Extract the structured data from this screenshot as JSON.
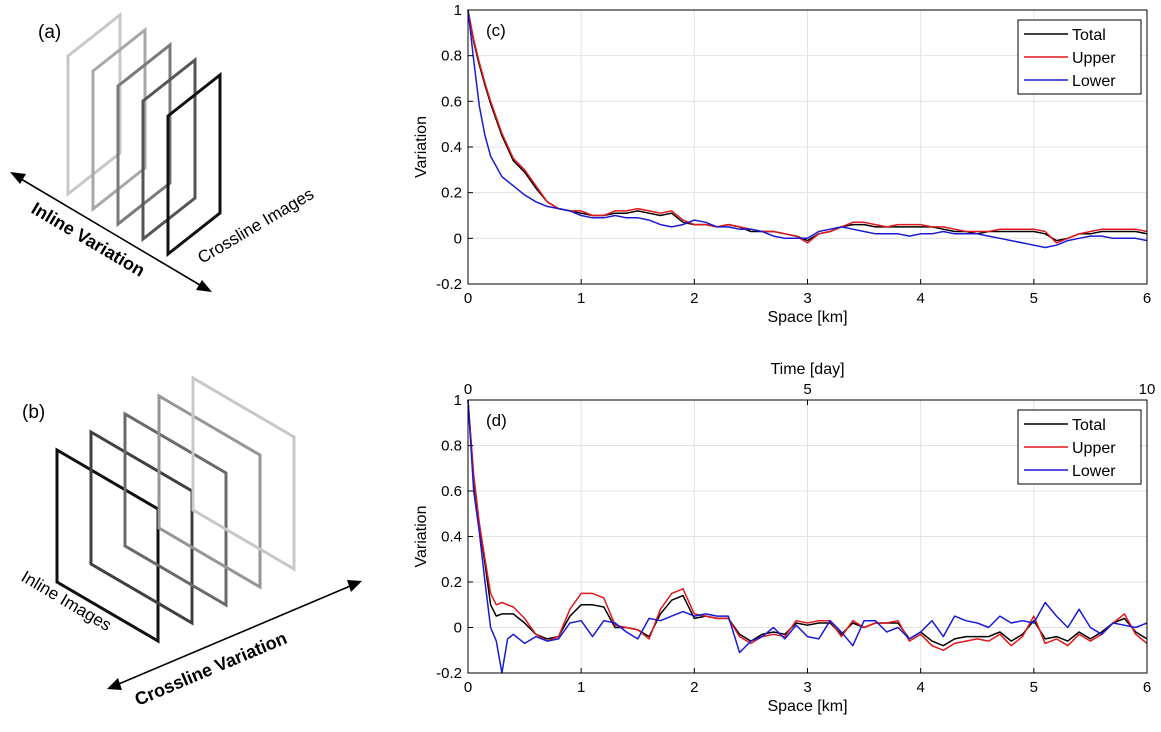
{
  "panels": {
    "a": {
      "label": "(a)",
      "arrow_label": "Inline Variation",
      "image_label": "Crossline Images",
      "frame_colors": [
        "#c8c8c8",
        "#a8a8a8",
        "#7a7a7a",
        "#555555",
        "#111111"
      ]
    },
    "b": {
      "label": "(b)",
      "arrow_label": "Crossline Variation",
      "image_label": "Inline Images",
      "frame_colors": [
        "#111111",
        "#404040",
        "#6a6a6a",
        "#969696",
        "#c8c8c8"
      ]
    }
  },
  "chart_data": [
    {
      "id": "c",
      "type": "line",
      "panel_label": "(c)",
      "xlabel": "Space [km]",
      "ylabel": "Variation",
      "xlim": [
        0,
        6
      ],
      "ylim": [
        -0.2,
        1
      ],
      "xticks": [
        0,
        1,
        2,
        3,
        4,
        5,
        6
      ],
      "yticks": [
        -0.2,
        0,
        0.2,
        0.4,
        0.6,
        0.8,
        1
      ],
      "grid": true,
      "legend": "top-right",
      "series": [
        {
          "name": "Total",
          "color": "#000000",
          "x": [
            0,
            0.05,
            0.1,
            0.15,
            0.2,
            0.3,
            0.4,
            0.5,
            0.6,
            0.7,
            0.8,
            0.9,
            1.0,
            1.1,
            1.2,
            1.3,
            1.4,
            1.5,
            1.6,
            1.7,
            1.8,
            1.9,
            2.0,
            2.1,
            2.2,
            2.3,
            2.4,
            2.5,
            2.6,
            2.7,
            2.8,
            2.9,
            3.0,
            3.1,
            3.2,
            3.3,
            3.4,
            3.5,
            3.6,
            3.7,
            3.8,
            3.9,
            4.0,
            4.1,
            4.2,
            4.3,
            4.4,
            4.5,
            4.6,
            4.7,
            4.8,
            4.9,
            5.0,
            5.1,
            5.2,
            5.3,
            5.4,
            5.5,
            5.6,
            5.7,
            5.8,
            5.9,
            6.0
          ],
          "y": [
            1.0,
            0.86,
            0.76,
            0.67,
            0.59,
            0.45,
            0.34,
            0.29,
            0.22,
            0.16,
            0.13,
            0.12,
            0.11,
            0.1,
            0.1,
            0.11,
            0.11,
            0.12,
            0.11,
            0.1,
            0.11,
            0.07,
            0.06,
            0.06,
            0.05,
            0.06,
            0.05,
            0.03,
            0.03,
            0.03,
            0.02,
            0.01,
            -0.01,
            0.02,
            0.03,
            0.05,
            0.06,
            0.06,
            0.05,
            0.05,
            0.05,
            0.05,
            0.05,
            0.05,
            0.04,
            0.03,
            0.03,
            0.02,
            0.03,
            0.03,
            0.03,
            0.03,
            0.03,
            0.02,
            -0.01,
            0.0,
            0.02,
            0.02,
            0.03,
            0.03,
            0.03,
            0.03,
            0.02
          ]
        },
        {
          "name": "Upper",
          "color": "#e0191c",
          "x": [
            0,
            0.05,
            0.1,
            0.15,
            0.2,
            0.3,
            0.4,
            0.5,
            0.6,
            0.7,
            0.8,
            0.9,
            1.0,
            1.1,
            1.2,
            1.3,
            1.4,
            1.5,
            1.6,
            1.7,
            1.8,
            1.9,
            2.0,
            2.1,
            2.2,
            2.3,
            2.4,
            2.5,
            2.6,
            2.7,
            2.8,
            2.9,
            3.0,
            3.1,
            3.2,
            3.3,
            3.4,
            3.5,
            3.6,
            3.7,
            3.8,
            3.9,
            4.0,
            4.1,
            4.2,
            4.3,
            4.4,
            4.5,
            4.6,
            4.7,
            4.8,
            4.9,
            5.0,
            5.1,
            5.2,
            5.3,
            5.4,
            5.5,
            5.6,
            5.7,
            5.8,
            5.9,
            6.0
          ],
          "y": [
            1.0,
            0.87,
            0.77,
            0.68,
            0.6,
            0.46,
            0.35,
            0.3,
            0.23,
            0.16,
            0.13,
            0.12,
            0.12,
            0.1,
            0.1,
            0.12,
            0.12,
            0.13,
            0.12,
            0.11,
            0.12,
            0.08,
            0.06,
            0.06,
            0.05,
            0.06,
            0.05,
            0.04,
            0.03,
            0.03,
            0.02,
            0.01,
            -0.02,
            0.02,
            0.03,
            0.05,
            0.07,
            0.07,
            0.06,
            0.05,
            0.06,
            0.06,
            0.06,
            0.05,
            0.05,
            0.04,
            0.03,
            0.03,
            0.03,
            0.04,
            0.04,
            0.04,
            0.04,
            0.03,
            -0.02,
            0.0,
            0.02,
            0.03,
            0.04,
            0.04,
            0.04,
            0.04,
            0.03
          ]
        },
        {
          "name": "Lower",
          "color": "#1a1ad6",
          "x": [
            0,
            0.05,
            0.1,
            0.15,
            0.2,
            0.3,
            0.4,
            0.5,
            0.6,
            0.7,
            0.8,
            0.9,
            1.0,
            1.1,
            1.2,
            1.3,
            1.4,
            1.5,
            1.6,
            1.7,
            1.8,
            1.9,
            2.0,
            2.1,
            2.2,
            2.3,
            2.4,
            2.5,
            2.6,
            2.7,
            2.8,
            2.9,
            3.0,
            3.1,
            3.2,
            3.3,
            3.4,
            3.5,
            3.6,
            3.7,
            3.8,
            3.9,
            4.0,
            4.1,
            4.2,
            4.3,
            4.4,
            4.5,
            4.6,
            4.7,
            4.8,
            4.9,
            5.0,
            5.1,
            5.2,
            5.3,
            5.4,
            5.5,
            5.6,
            5.7,
            5.8,
            5.9,
            6.0
          ],
          "y": [
            1.0,
            0.78,
            0.58,
            0.45,
            0.36,
            0.27,
            0.23,
            0.19,
            0.16,
            0.14,
            0.13,
            0.12,
            0.1,
            0.09,
            0.09,
            0.1,
            0.09,
            0.09,
            0.08,
            0.06,
            0.05,
            0.06,
            0.08,
            0.07,
            0.05,
            0.05,
            0.04,
            0.04,
            0.03,
            0.01,
            0.0,
            0.0,
            0.0,
            0.03,
            0.04,
            0.05,
            0.04,
            0.03,
            0.02,
            0.02,
            0.02,
            0.01,
            0.02,
            0.02,
            0.03,
            0.02,
            0.02,
            0.02,
            0.01,
            0.0,
            -0.01,
            -0.02,
            -0.03,
            -0.04,
            -0.03,
            -0.01,
            0.0,
            0.01,
            0.01,
            0.0,
            0.0,
            0.0,
            -0.01
          ]
        }
      ]
    },
    {
      "id": "d",
      "type": "line",
      "panel_label": "(d)",
      "xlabel": "Space [km]",
      "ylabel": "Variation",
      "top_xlabel": "Time [day]",
      "top_xticks": [
        0,
        5,
        10
      ],
      "top_xlim": [
        0,
        10
      ],
      "xlim": [
        0,
        6
      ],
      "ylim": [
        -0.2,
        1
      ],
      "xticks": [
        0,
        1,
        2,
        3,
        4,
        5,
        6
      ],
      "yticks": [
        -0.2,
        0,
        0.2,
        0.4,
        0.6,
        0.8,
        1
      ],
      "grid": true,
      "legend": "top-right",
      "series": [
        {
          "name": "Total",
          "color": "#000000",
          "x": [
            0,
            0.05,
            0.1,
            0.15,
            0.2,
            0.25,
            0.3,
            0.4,
            0.5,
            0.6,
            0.7,
            0.8,
            0.9,
            1.0,
            1.1,
            1.2,
            1.3,
            1.4,
            1.5,
            1.6,
            1.7,
            1.8,
            1.9,
            2.0,
            2.1,
            2.2,
            2.3,
            2.4,
            2.5,
            2.6,
            2.7,
            2.8,
            2.9,
            3.0,
            3.1,
            3.2,
            3.3,
            3.4,
            3.5,
            3.6,
            3.7,
            3.8,
            3.9,
            4.0,
            4.1,
            4.2,
            4.3,
            4.4,
            4.5,
            4.6,
            4.7,
            4.8,
            4.9,
            5.0,
            5.1,
            5.2,
            5.3,
            5.4,
            5.5,
            5.6,
            5.7,
            5.8,
            5.9,
            6.0
          ],
          "y": [
            1.0,
            0.65,
            0.45,
            0.28,
            0.1,
            0.05,
            0.06,
            0.06,
            0.02,
            -0.03,
            -0.05,
            -0.04,
            0.05,
            0.1,
            0.1,
            0.09,
            0.0,
            0.0,
            -0.01,
            -0.04,
            0.06,
            0.12,
            0.14,
            0.04,
            0.05,
            0.04,
            0.04,
            -0.03,
            -0.06,
            -0.03,
            -0.02,
            -0.03,
            0.02,
            0.01,
            0.02,
            0.02,
            -0.03,
            0.02,
            0.0,
            0.02,
            0.02,
            0.02,
            -0.05,
            -0.02,
            -0.06,
            -0.08,
            -0.05,
            -0.04,
            -0.04,
            -0.04,
            -0.02,
            -0.06,
            -0.03,
            0.03,
            -0.05,
            -0.04,
            -0.06,
            -0.02,
            -0.05,
            -0.02,
            0.02,
            0.04,
            -0.02,
            -0.05
          ]
        },
        {
          "name": "Upper",
          "color": "#e0191c",
          "x": [
            0,
            0.05,
            0.1,
            0.15,
            0.2,
            0.25,
            0.3,
            0.4,
            0.5,
            0.6,
            0.7,
            0.8,
            0.9,
            1.0,
            1.1,
            1.2,
            1.3,
            1.4,
            1.5,
            1.6,
            1.7,
            1.8,
            1.9,
            2.0,
            2.1,
            2.2,
            2.3,
            2.4,
            2.5,
            2.6,
            2.7,
            2.8,
            2.9,
            3.0,
            3.1,
            3.2,
            3.3,
            3.4,
            3.5,
            3.6,
            3.7,
            3.8,
            3.9,
            4.0,
            4.1,
            4.2,
            4.3,
            4.4,
            4.5,
            4.6,
            4.7,
            4.8,
            4.9,
            5.0,
            5.1,
            5.2,
            5.3,
            5.4,
            5.5,
            5.6,
            5.7,
            5.8,
            5.9,
            6.0
          ],
          "y": [
            1.0,
            0.67,
            0.46,
            0.3,
            0.15,
            0.1,
            0.11,
            0.09,
            0.04,
            -0.03,
            -0.06,
            -0.04,
            0.08,
            0.15,
            0.15,
            0.13,
            0.01,
            0.0,
            -0.01,
            -0.05,
            0.08,
            0.15,
            0.17,
            0.06,
            0.05,
            0.04,
            0.04,
            -0.04,
            -0.07,
            -0.04,
            -0.03,
            -0.04,
            0.03,
            0.02,
            0.03,
            0.03,
            -0.04,
            0.03,
            0.0,
            0.02,
            0.02,
            0.03,
            -0.06,
            -0.03,
            -0.08,
            -0.1,
            -0.07,
            -0.06,
            -0.05,
            -0.06,
            -0.03,
            -0.08,
            -0.04,
            0.05,
            -0.07,
            -0.05,
            -0.08,
            -0.03,
            -0.06,
            -0.03,
            0.02,
            0.06,
            -0.03,
            -0.07
          ]
        },
        {
          "name": "Lower",
          "color": "#1a1ad6",
          "x": [
            0,
            0.05,
            0.1,
            0.15,
            0.2,
            0.25,
            0.3,
            0.35,
            0.4,
            0.5,
            0.6,
            0.7,
            0.8,
            0.9,
            1.0,
            1.1,
            1.2,
            1.3,
            1.4,
            1.5,
            1.6,
            1.7,
            1.8,
            1.9,
            2.0,
            2.1,
            2.2,
            2.3,
            2.4,
            2.5,
            2.6,
            2.7,
            2.8,
            2.9,
            3.0,
            3.1,
            3.2,
            3.3,
            3.4,
            3.5,
            3.6,
            3.7,
            3.8,
            3.9,
            4.0,
            4.1,
            4.2,
            4.3,
            4.4,
            4.5,
            4.6,
            4.7,
            4.8,
            4.9,
            5.0,
            5.1,
            5.2,
            5.3,
            5.4,
            5.5,
            5.6,
            5.7,
            5.8,
            5.9,
            6.0
          ],
          "y": [
            1.0,
            0.6,
            0.42,
            0.2,
            0.0,
            -0.06,
            -0.2,
            -0.05,
            -0.03,
            -0.07,
            -0.04,
            -0.06,
            -0.05,
            0.02,
            0.03,
            -0.04,
            0.03,
            0.02,
            -0.02,
            -0.05,
            0.04,
            0.03,
            0.05,
            0.07,
            0.05,
            0.06,
            0.05,
            0.05,
            -0.11,
            -0.06,
            -0.04,
            0.0,
            -0.05,
            0.01,
            -0.04,
            -0.05,
            0.03,
            -0.02,
            -0.08,
            0.03,
            0.03,
            -0.02,
            0.0,
            -0.05,
            -0.02,
            0.03,
            -0.04,
            0.05,
            0.03,
            0.02,
            0.0,
            0.05,
            0.02,
            0.03,
            0.02,
            0.11,
            0.05,
            0.0,
            0.08,
            0.0,
            -0.03,
            0.02,
            0.01,
            0.0,
            0.02
          ]
        }
      ]
    }
  ]
}
